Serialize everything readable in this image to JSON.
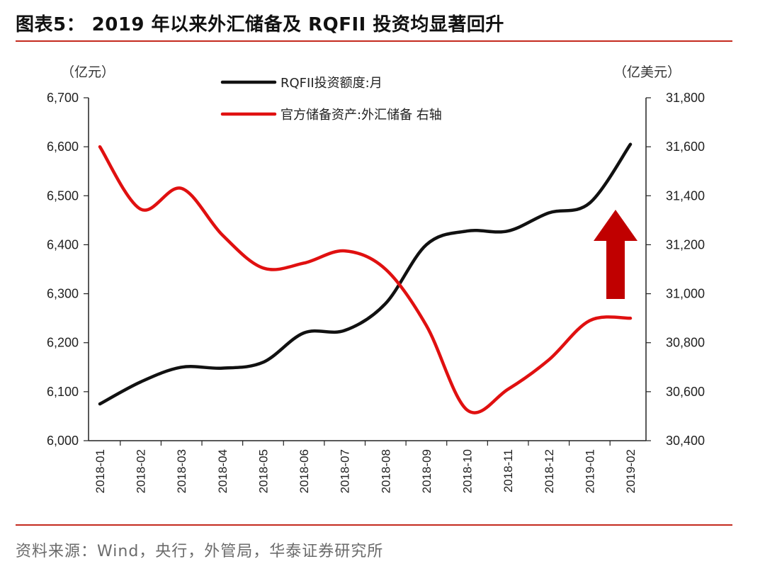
{
  "header": {
    "title": "图表5： 2019 年以来外汇储备及 RQFII 投资均显著回升"
  },
  "footer": {
    "source": "资料来源：Wind，央行，外管局，华泰证券研究所"
  },
  "colors": {
    "rule": "#c42a1e",
    "rqfii": "#111111",
    "reserves": "#e01010",
    "arrow": "#c00000"
  },
  "chart_data": {
    "type": "line",
    "categories": [
      "2018-01",
      "2018-02",
      "2018-03",
      "2018-04",
      "2018-05",
      "2018-06",
      "2018-07",
      "2018-08",
      "2018-09",
      "2018-10",
      "2018-11",
      "2018-12",
      "2019-01",
      "2019-02"
    ],
    "y_left": {
      "unit": "（亿元）",
      "ylim": [
        6000,
        6700
      ],
      "ticks": [
        "6,000",
        "6,100",
        "6,200",
        "6,300",
        "6,400",
        "6,500",
        "6,600",
        "6,700"
      ]
    },
    "y_right": {
      "unit": "（亿美元）",
      "ylim": [
        30400,
        31800
      ],
      "ticks": [
        "30,400",
        "30,600",
        "30,800",
        "31,000",
        "31,200",
        "31,400",
        "31,600",
        "31,800"
      ]
    },
    "series": [
      {
        "name": "RQFII投资额度:月",
        "axis": "left",
        "color": "#111111",
        "values": [
          6075,
          6120,
          6150,
          6148,
          6160,
          6220,
          6225,
          6280,
          6400,
          6428,
          6428,
          6465,
          6485,
          6605
        ]
      },
      {
        "name": "官方储备资产:外汇储备 右轴",
        "axis": "right",
        "color": "#e01010",
        "values": [
          31600,
          31345,
          31430,
          31240,
          31105,
          31125,
          31175,
          31100,
          30870,
          30525,
          30610,
          30730,
          30890,
          30900
        ]
      }
    ],
    "annotation": {
      "type": "arrow-up",
      "color": "#c00000"
    },
    "grid": false,
    "legend": "top-center"
  }
}
